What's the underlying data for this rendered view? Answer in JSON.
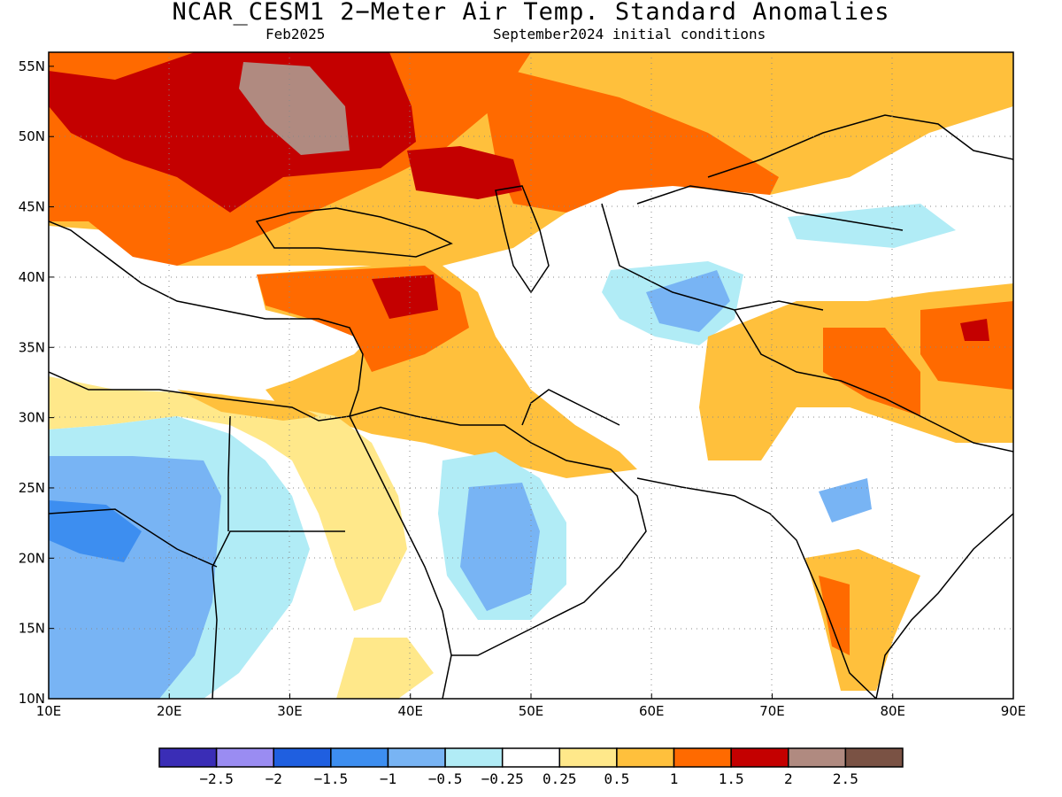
{
  "title": "NCAR_CESM1 2−Meter Air Temp. Standard Anomalies",
  "subtitle_left": "Feb2025",
  "subtitle_right": "September2024 initial conditions",
  "axes": {
    "lon_ticks": [
      "10E",
      "20E",
      "30E",
      "40E",
      "50E",
      "60E",
      "70E",
      "80E",
      "90E"
    ],
    "lat_ticks": [
      "55N",
      "50N",
      "45N",
      "40N",
      "35N",
      "30N",
      "25N",
      "20N",
      "15N",
      "10N"
    ],
    "lon_range": [
      10,
      90
    ],
    "lat_range": [
      10,
      56
    ],
    "grid": "dotted"
  },
  "colorbar": {
    "labels": [
      "−2.5",
      "−2",
      "−1.5",
      "−1",
      "−0.5",
      "−0.25",
      "0.25",
      "0.5",
      "1",
      "1.5",
      "2",
      "2.5"
    ],
    "colors": [
      "#3a2db6",
      "#9a8cf2",
      "#1f5fe0",
      "#3d8ef0",
      "#78b4f4",
      "#b1ecf6",
      "#ffffff",
      "#ffe88a",
      "#ffc03c",
      "#ff6a00",
      "#c40000",
      "#b08a80",
      "#7a5244"
    ]
  },
  "chart_data": {
    "type": "heatmap",
    "title": "NCAR_CESM1 2−Meter Air Temp. Standard Anomalies",
    "xlabel": "",
    "ylabel": "",
    "xlim": [
      10,
      90
    ],
    "ylim": [
      10,
      56
    ]
  }
}
